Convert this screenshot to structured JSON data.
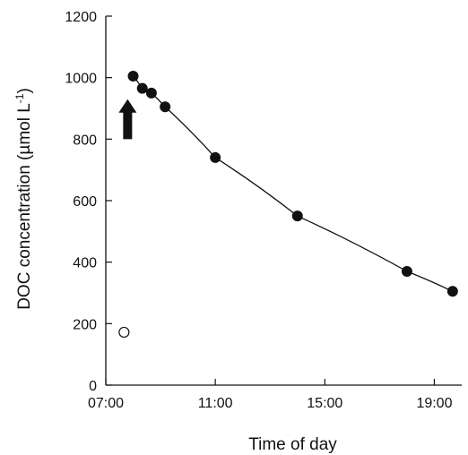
{
  "chart_data": {
    "type": "scatter",
    "title": "",
    "xlabel": "Time of day",
    "ylabel_parts": {
      "main": "DOC concentration (µmol L",
      "superscript": "-1",
      "close": ")"
    },
    "x_ticks": [
      "07:00",
      "11:00",
      "15:00",
      "19:00"
    ],
    "y_ticks": [
      "0",
      "200",
      "400",
      "600",
      "800",
      "1000",
      "1200"
    ],
    "xlim": [
      "07:00",
      "20:00"
    ],
    "ylim": [
      0,
      1200
    ],
    "grid": false,
    "series": [
      {
        "marker": "filled-circle",
        "connected": true,
        "points": [
          {
            "x": "08:00",
            "y": 1005
          },
          {
            "x": "08:20",
            "y": 965
          },
          {
            "x": "08:40",
            "y": 950
          },
          {
            "x": "09:10",
            "y": 905
          },
          {
            "x": "11:00",
            "y": 740
          },
          {
            "x": "14:00",
            "y": 550
          },
          {
            "x": "18:00",
            "y": 370
          },
          {
            "x": "19:40",
            "y": 305
          }
        ]
      },
      {
        "marker": "open-circle",
        "connected": false,
        "points": [
          {
            "x": "07:40",
            "y": 172
          }
        ]
      }
    ],
    "annotations": [
      {
        "type": "arrow-up",
        "x": "07:40",
        "y_from": 800,
        "y_to": 930
      }
    ],
    "colors": {
      "filled": "#111111",
      "open_stroke": "#111111",
      "line": "#111111"
    }
  }
}
